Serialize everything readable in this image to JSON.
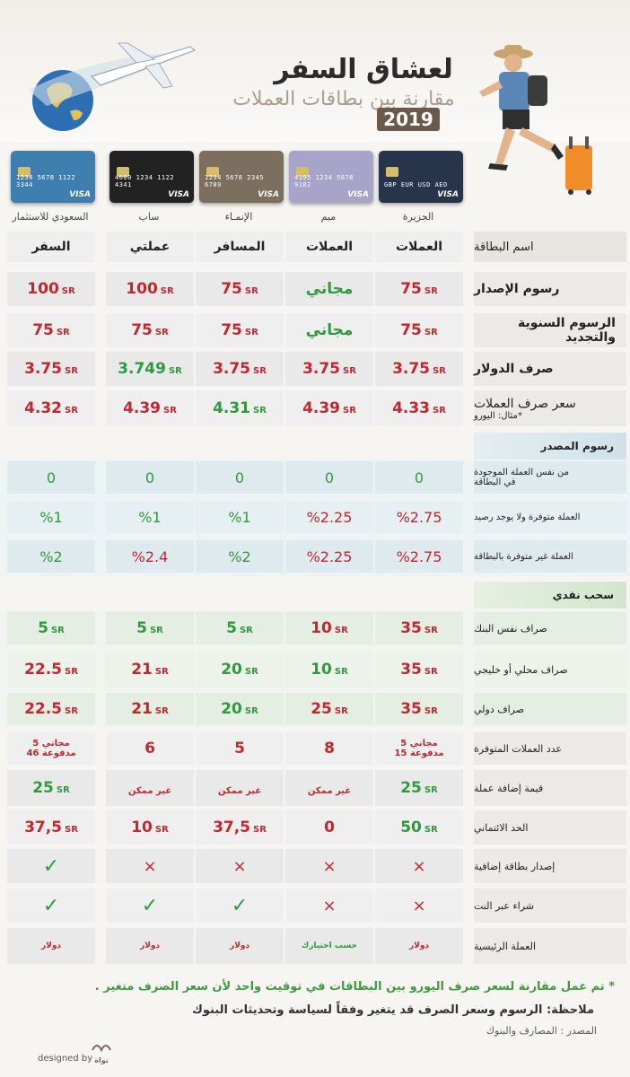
{
  "header": {
    "title": "لعشاق السفر",
    "subtitle": "مقارنة بين بطاقات العملات",
    "year": "2019"
  },
  "banks": [
    {
      "name": "الجزيرة",
      "card_color": "#27354a"
    },
    {
      "name": "ميم",
      "card_color": "#a7a3c9"
    },
    {
      "name": "الإنمـاء",
      "card_color": "#7d6f5e"
    },
    {
      "name": "ساب",
      "card_color": "#222222"
    },
    {
      "name": "السعودي للاستثمار",
      "card_color": "#3f7fb0"
    }
  ],
  "cards": [
    {
      "num": "GBP EUR USD AED"
    },
    {
      "num": "4195 1234 5678 9102"
    },
    {
      "num": "1234 5678 2345 6789"
    },
    {
      "num": "4000 1234 1122 4341"
    },
    {
      "num": "1234 5678 1122 3344"
    }
  ],
  "visa_label": "VISA",
  "rows_top": [
    {
      "label": "اسم البطاقة",
      "values": [
        "العملات",
        "العملات",
        "المسافر",
        "عملتي",
        "السفر"
      ]
    },
    {
      "label": "رسوم الإصدار",
      "values": [
        {
          "v": "75",
          "u": "SR"
        },
        {
          "v": "مجاني"
        },
        {
          "v": "75",
          "u": "SR"
        },
        {
          "v": "100",
          "u": "SR"
        },
        {
          "v": "100",
          "u": "SR"
        }
      ]
    },
    {
      "label": "الرسوم السنوية والتجديد",
      "values": [
        {
          "v": "75",
          "u": "SR"
        },
        {
          "v": "مجاني"
        },
        {
          "v": "75",
          "u": "SR"
        },
        {
          "v": "75",
          "u": "SR"
        },
        {
          "v": "75",
          "u": "SR"
        }
      ]
    },
    {
      "label": "صرف الدولار",
      "values": [
        {
          "v": "3.75",
          "u": "SR"
        },
        {
          "v": "3.75",
          "u": "SR"
        },
        {
          "v": "3.75",
          "u": "SR"
        },
        {
          "v": "3.749",
          "u": "SR"
        },
        {
          "v": "3.75",
          "u": "SR"
        }
      ]
    },
    {
      "label": "سعر صرف العملات",
      "label2": "*مثال: اليورو",
      "values": [
        {
          "v": "4.33",
          "u": "SR"
        },
        {
          "v": "4.39",
          "u": "SR"
        },
        {
          "v": "4.31",
          "u": "SR"
        },
        {
          "v": "4.39",
          "u": "SR"
        },
        {
          "v": "4.32",
          "u": "SR"
        }
      ]
    }
  ],
  "section_source": "رسوم المصدر",
  "rows_source": [
    {
      "label": "من نفس العملة الموجودة",
      "label2": "في البطاقة",
      "values": [
        "0",
        "0",
        "0",
        "0",
        "0"
      ]
    },
    {
      "label": "العملة متوفرة ولا يوجد رصيد",
      "values": [
        "%2.75",
        "%2.25",
        "%1",
        "%1",
        "%1"
      ]
    },
    {
      "label": "العملة غير متوفرة بالبطاقة",
      "values": [
        "%2.75",
        "%2.25",
        "%2",
        "%2.4",
        "%2"
      ]
    }
  ],
  "section_cash": "سحب نقدي",
  "rows_cash": [
    {
      "label": "صراف نفس البنك",
      "values": [
        {
          "v": "35",
          "u": "SR"
        },
        {
          "v": "10",
          "u": "SR"
        },
        {
          "v": "5",
          "u": "SR"
        },
        {
          "v": "5",
          "u": "SR"
        },
        {
          "v": "5",
          "u": "SR"
        }
      ]
    },
    {
      "label": "صراف محلي أو خليجي",
      "values": [
        {
          "v": "35",
          "u": "SR"
        },
        {
          "v": "10",
          "u": "SR"
        },
        {
          "v": "20",
          "u": "SR"
        },
        {
          "v": "21",
          "u": "SR"
        },
        {
          "v": "22.5",
          "u": "SR"
        }
      ]
    },
    {
      "label": "صراف دولي",
      "values": [
        {
          "v": "35",
          "u": "SR"
        },
        {
          "v": "25",
          "u": "SR"
        },
        {
          "v": "20",
          "u": "SR"
        },
        {
          "v": "21",
          "u": "SR"
        },
        {
          "v": "22.5",
          "u": "SR"
        }
      ]
    }
  ],
  "rows_bottom": [
    {
      "label": "عدد العملات المتوفرة",
      "values": [
        {
          "l1": "5 مجاني",
          "l2": "15 مدفوعة"
        },
        {
          "v": "8"
        },
        {
          "v": "5"
        },
        {
          "v": "6"
        },
        {
          "l1": "5 مجاني",
          "l2": "46 مدفوعة"
        }
      ]
    },
    {
      "label": "قيمة إضافة عملة",
      "values": [
        {
          "v": "25",
          "u": "SR"
        },
        {
          "t": "غير ممكن"
        },
        {
          "t": "غير ممكن"
        },
        {
          "t": "غير ممكن"
        },
        {
          "v": "25",
          "u": "SR"
        }
      ]
    },
    {
      "label": "الحد الائتماني",
      "values": [
        {
          "v": "50",
          "u": "SR"
        },
        {
          "v": "0"
        },
        {
          "v": "37,5",
          "u": "SR"
        },
        {
          "v": "10",
          "u": "SR"
        },
        {
          "v": "37,5",
          "u": "SR"
        }
      ]
    },
    {
      "label": "إصدار بطاقة إضافية",
      "values": [
        "×",
        "×",
        "×",
        "×",
        "✓"
      ]
    },
    {
      "label": "شراء عبر النت",
      "values": [
        "×",
        "×",
        "✓",
        "✓",
        "✓"
      ]
    },
    {
      "label": "العملة الرئيسية",
      "values": [
        "دولار",
        "حسب اختيارك",
        "دولار",
        "دولار",
        "دولار"
      ]
    }
  ],
  "footer": {
    "note1": "* تم عمل مقارنة لسعر صرف اليورو بين البطاقات في توقيت واحد لأن سعر الصرف متغير .",
    "note2": "ملاحظة: الرسوم وسعر الصرف قد يتغير وفقاً لسياسة وتحديثات البنوك",
    "source": "المصدر : المصارف والبنوك",
    "designed_by": "designed by",
    "logo": "نواة"
  },
  "colors": {
    "green": "#2f9a3c",
    "red": "#c0282e"
  }
}
